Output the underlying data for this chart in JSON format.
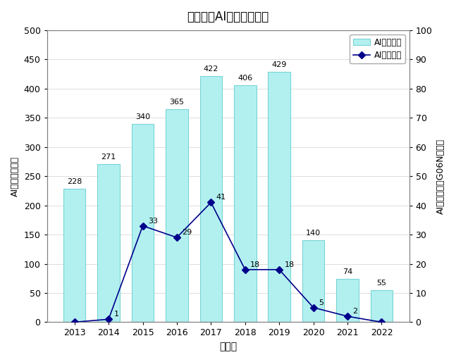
{
  "title": "山梨県のAI関連特許出願",
  "years": [
    2013,
    2014,
    2015,
    2016,
    2017,
    2018,
    2019,
    2020,
    2021,
    2022
  ],
  "ai_related": [
    228,
    271,
    340,
    365,
    422,
    406,
    429,
    140,
    74,
    55
  ],
  "ai_core": [
    0,
    1,
    33,
    29,
    41,
    18,
    18,
    5,
    2,
    0
  ],
  "bar_color": "#b2f0f0",
  "bar_edgecolor": "#7ad4d4",
  "line_color": "#00008b",
  "marker_color": "#00008b",
  "xlabel": "出願年",
  "ylabel_left": "AI関連発明／件",
  "ylabel_right": "AIコア発明（G06N）／件",
  "legend_bar": "AI関連発明",
  "legend_line": "AIコア発明",
  "ylim_left": [
    0,
    500
  ],
  "ylim_right": [
    0,
    100
  ],
  "yticks_left": [
    0,
    50,
    100,
    150,
    200,
    250,
    300,
    350,
    400,
    450,
    500
  ],
  "yticks_right": [
    0,
    10,
    20,
    30,
    40,
    50,
    60,
    70,
    80,
    90,
    100
  ],
  "background_color": "#ffffff",
  "plot_bg_color": "#ffffff",
  "grid_color": "#d0d0d0",
  "border_color": "#808080"
}
